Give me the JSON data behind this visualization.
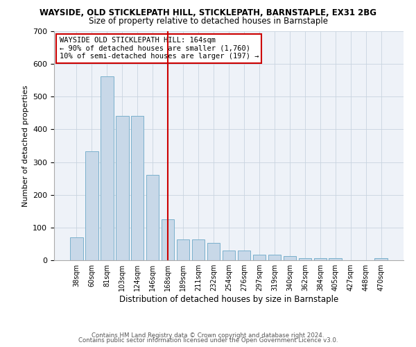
{
  "title1": "WAYSIDE, OLD STICKLEPATH HILL, STICKLEPATH, BARNSTAPLE, EX31 2BG",
  "title2": "Size of property relative to detached houses in Barnstaple",
  "xlabel": "Distribution of detached houses by size in Barnstaple",
  "ylabel": "Number of detached properties",
  "categories": [
    "38sqm",
    "60sqm",
    "81sqm",
    "103sqm",
    "124sqm",
    "146sqm",
    "168sqm",
    "189sqm",
    "211sqm",
    "232sqm",
    "254sqm",
    "276sqm",
    "297sqm",
    "319sqm",
    "340sqm",
    "362sqm",
    "384sqm",
    "405sqm",
    "427sqm",
    "448sqm",
    "470sqm"
  ],
  "values": [
    70,
    332,
    562,
    441,
    441,
    260,
    125,
    63,
    63,
    52,
    30,
    30,
    16,
    16,
    12,
    6,
    7,
    6,
    0,
    0,
    6
  ],
  "bar_color": "#c8d8e8",
  "bar_edge_color": "#7ab0cc",
  "vline_x": 6,
  "vline_color": "#cc0000",
  "annotation_text": "WAYSIDE OLD STICKLEPATH HILL: 164sqm\n← 90% of detached houses are smaller (1,760)\n10% of semi-detached houses are larger (197) →",
  "annotation_box_color": "#ffffff",
  "annotation_box_edge": "#cc0000",
  "ylim": [
    0,
    700
  ],
  "yticks": [
    0,
    100,
    200,
    300,
    400,
    500,
    600,
    700
  ],
  "footer1": "Contains HM Land Registry data © Crown copyright and database right 2024.",
  "footer2": "Contains public sector information licensed under the Open Government Licence v3.0.",
  "bg_color": "#eef2f8"
}
